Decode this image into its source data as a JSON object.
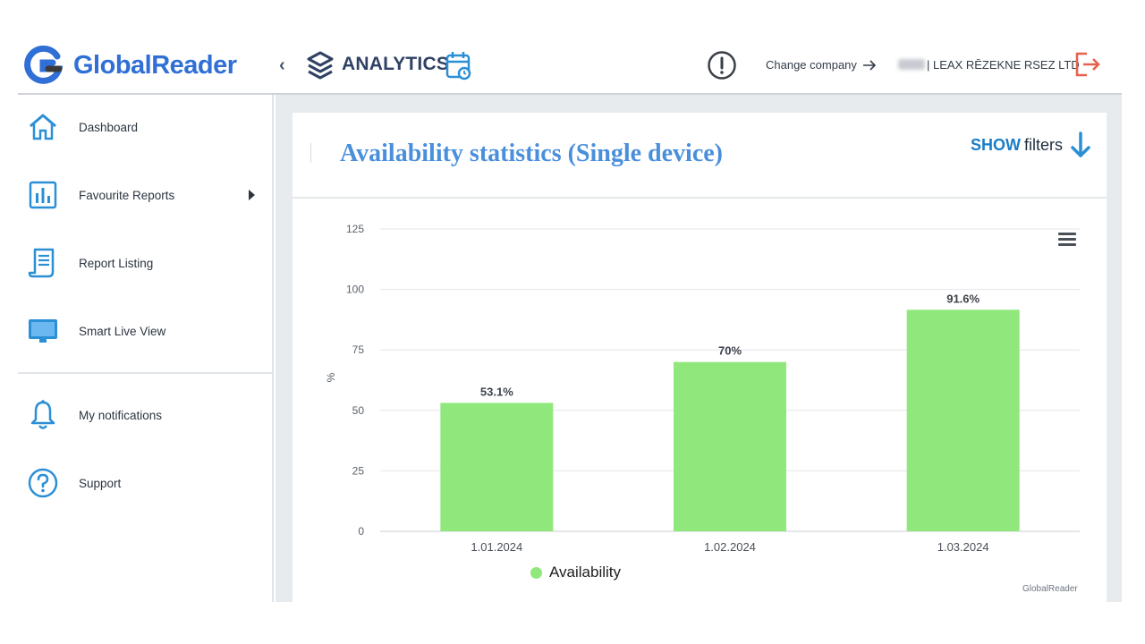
{
  "header": {
    "brand": "GlobalReader",
    "section": "ANALYTICS",
    "change_company": "Change company",
    "company_name": "| LEAX RĒZEKNE RSEZ LTD"
  },
  "sidebar": {
    "items": [
      {
        "label": "Dashboard",
        "icon": "home-icon"
      },
      {
        "label": "Favourite Reports",
        "icon": "bar-chart-icon"
      },
      {
        "label": "Report Listing",
        "icon": "document-list-icon"
      },
      {
        "label": "Smart Live View",
        "icon": "monitor-icon"
      },
      {
        "label": "My notifications",
        "icon": "bell-icon"
      },
      {
        "label": "Support",
        "icon": "help-circle-icon"
      }
    ]
  },
  "card": {
    "title": "Availability statistics (Single device)",
    "show_label": "SHOW",
    "filters_label": "filters"
  },
  "colors": {
    "brand_blue": "#2f6fd6",
    "bar_green": "#90e87c",
    "title_blue": "#4a8fdc",
    "logout_red": "#e8604c"
  },
  "chart_data": {
    "type": "bar",
    "categories": [
      "1.01.2024",
      "1.02.2024",
      "1.03.2024"
    ],
    "series": [
      {
        "name": "Availability",
        "values": [
          53.1,
          70,
          91.6
        ],
        "labels": [
          "53.1%",
          "70%",
          "91.6%"
        ]
      }
    ],
    "ylabel": "%",
    "ylim": [
      0,
      125
    ],
    "yticks": [
      0,
      25,
      50,
      75,
      100,
      125
    ],
    "grid": true,
    "legend": "bottom-left",
    "credit": "GlobalReader"
  }
}
